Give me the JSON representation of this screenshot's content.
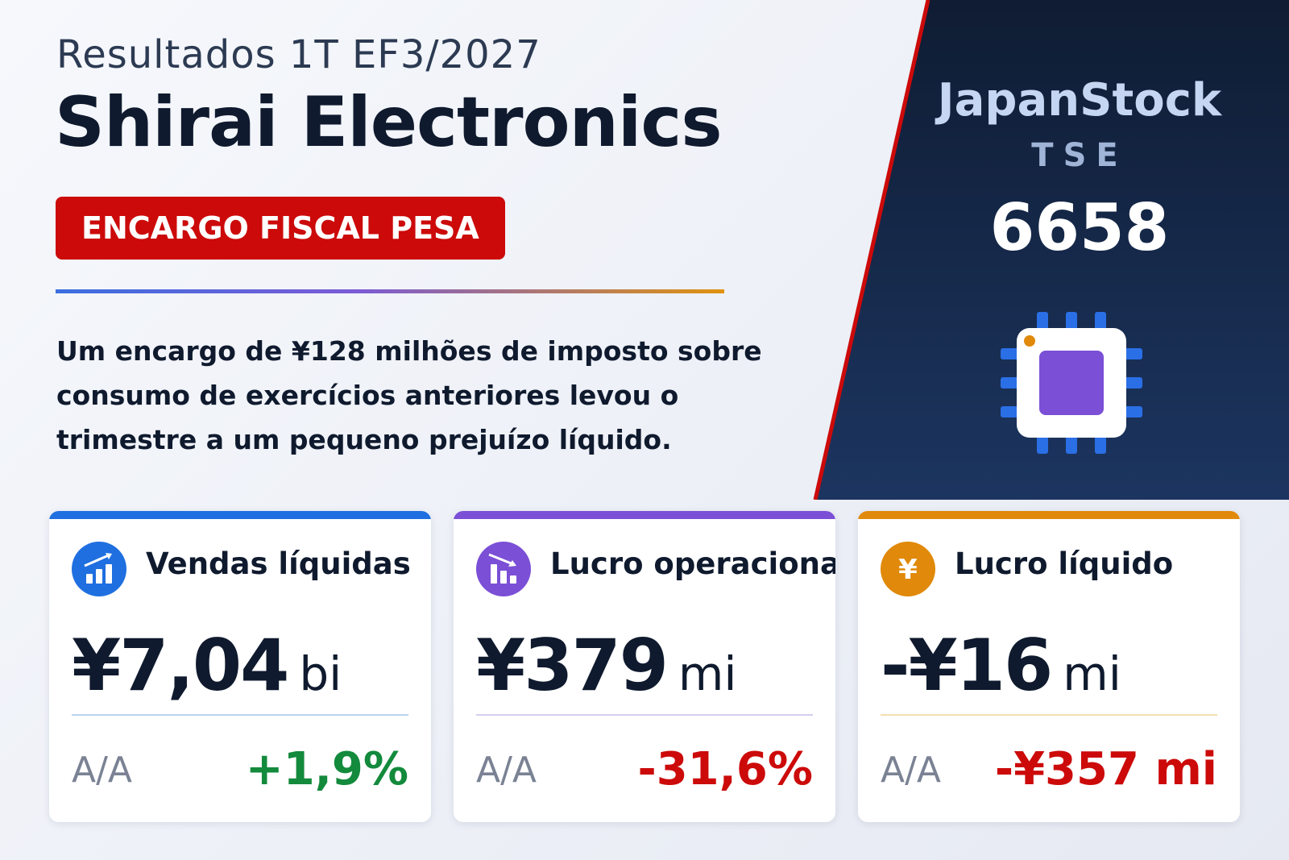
{
  "header": {
    "subtitle": "Resultados 1T EF3/2027",
    "title": "Shirai Electronics",
    "badge": "ENCARGO FISCAL PESA",
    "summary": "Um encargo de ¥128 milhões de imposto sobre consumo de exercícios anteriores levou o trimestre a um pequeno prejuízo líquido."
  },
  "brand": {
    "name": "JapanStock",
    "exchange": "TSE",
    "code": "6658",
    "icon": "chip-icon"
  },
  "cards": [
    {
      "label": "Vendas líquidas",
      "icon": "bar-chart-up-icon",
      "value": "¥7,04",
      "unit": "bi",
      "yoy_label": "A/A",
      "yoy_value": "+1,9%",
      "accent": "#1f6fe0"
    },
    {
      "label": "Lucro operacional",
      "icon": "bar-chart-down-icon",
      "value": "¥379",
      "unit": "mi",
      "yoy_label": "A/A",
      "yoy_value": "-31,6%",
      "accent": "#7b4fd6"
    },
    {
      "label": "Lucro líquido",
      "icon": "yen-icon",
      "icon_glyph": "¥",
      "value": "-¥16",
      "unit": "mi",
      "yoy_label": "A/A",
      "yoy_value": "-¥357 mi",
      "accent": "#e0890a"
    }
  ],
  "colors": {
    "badge": "#cc0a0a",
    "positive": "#138a3c",
    "negative": "#cc0a0a",
    "panel": "#13233f"
  }
}
